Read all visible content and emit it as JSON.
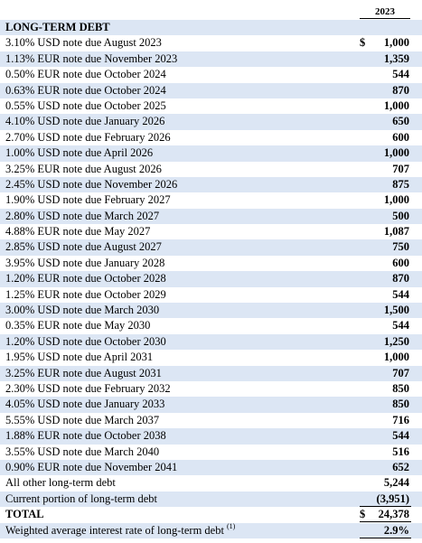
{
  "header": {
    "year": "2023"
  },
  "table": {
    "section": "LONG-TERM DEBT",
    "notes": [
      {
        "label": "3.10% USD note due August 2023",
        "currency": "$",
        "value": "1,000"
      },
      {
        "label": "1.13% EUR note due November 2023",
        "value": "1,359"
      },
      {
        "label": "0.50% EUR note due October 2024",
        "value": "544"
      },
      {
        "label": "0.63% EUR note due October 2024",
        "value": "870"
      },
      {
        "label": "0.55% USD note due October 2025",
        "value": "1,000"
      },
      {
        "label": "4.10% USD note due January 2026",
        "value": "650"
      },
      {
        "label": "2.70% USD note due February 2026",
        "value": "600"
      },
      {
        "label": "1.00% USD note due April 2026",
        "value": "1,000"
      },
      {
        "label": "3.25% EUR note due August 2026",
        "value": "707"
      },
      {
        "label": "2.45% USD note due November 2026",
        "value": "875"
      },
      {
        "label": "1.90% USD note due February 2027",
        "value": "1,000"
      },
      {
        "label": "2.80% USD note due March 2027",
        "value": "500"
      },
      {
        "label": "4.88% EUR note due May 2027",
        "value": "1,087"
      },
      {
        "label": "2.85% USD note due August 2027",
        "value": "750"
      },
      {
        "label": "3.95% USD note due January 2028",
        "value": "600"
      },
      {
        "label": "1.20% EUR note due October 2028",
        "value": "870"
      },
      {
        "label": "1.25% EUR note due October 2029",
        "value": "544"
      },
      {
        "label": "3.00% USD note due March 2030",
        "value": "1,500"
      },
      {
        "label": "0.35% EUR note due May 2030",
        "value": "544"
      },
      {
        "label": "1.20% USD note due October 2030",
        "value": "1,250"
      },
      {
        "label": "1.95% USD note due April 2031",
        "value": "1,000"
      },
      {
        "label": "3.25% EUR note due August 2031",
        "value": "707"
      },
      {
        "label": "2.30% USD note due February 2032",
        "value": "850"
      },
      {
        "label": "4.05% USD note due January 2033",
        "value": "850"
      },
      {
        "label": "5.55% USD note due March 2037",
        "value": "716"
      },
      {
        "label": "1.88% EUR note due October 2038",
        "value": "544"
      },
      {
        "label": "3.55% USD note due March 2040",
        "value": "516"
      },
      {
        "label": "0.90% EUR note due November 2041",
        "value": "652"
      },
      {
        "label": "All other long-term debt",
        "value": "5,244"
      },
      {
        "label": "Current portion of long-term debt",
        "value": "(3,951)"
      }
    ],
    "total": {
      "label": "TOTAL",
      "currency": "$",
      "value": "24,378"
    },
    "weighted": {
      "label": "Weighted average interest rate of long-term debt",
      "footnote": "(1)",
      "value": "2.9%"
    }
  }
}
